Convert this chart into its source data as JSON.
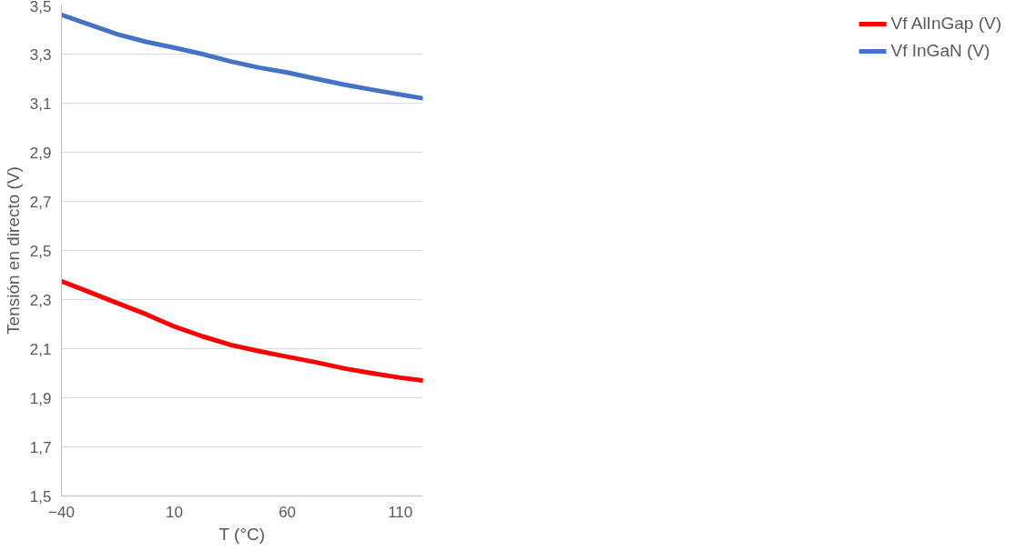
{
  "chart_data": {
    "type": "line",
    "xlabel": "T (°C)",
    "ylabel": "Tensión en directo (V)",
    "x": [
      -40,
      -27.5,
      -15,
      -2.5,
      10,
      22.5,
      35,
      47.5,
      60,
      72.5,
      85,
      97.5,
      110,
      120
    ],
    "series": [
      {
        "name": "Vf AlInGap (V)",
        "color": "#ff0000",
        "values": [
          2.375,
          2.33,
          2.285,
          2.24,
          2.19,
          2.15,
          2.115,
          2.09,
          2.067,
          2.045,
          2.02,
          2.0,
          1.982,
          1.97
        ]
      },
      {
        "name": "Vf InGaN (V)",
        "color": "#4472c4",
        "values": [
          3.46,
          3.42,
          3.38,
          3.35,
          3.326,
          3.3,
          3.27,
          3.245,
          3.225,
          3.2,
          3.176,
          3.155,
          3.135,
          3.12
        ]
      }
    ],
    "xlim": [
      -40,
      120
    ],
    "ylim": [
      1.5,
      3.5
    ],
    "xticks": [
      -40,
      10,
      60,
      110
    ],
    "yticks": [
      {
        "value": 1.5,
        "label": "1,5"
      },
      {
        "value": 1.7,
        "label": "1,7"
      },
      {
        "value": 1.9,
        "label": "1,9"
      },
      {
        "value": 2.1,
        "label": "2,1"
      },
      {
        "value": 2.3,
        "label": "2,3"
      },
      {
        "value": 2.5,
        "label": "2,5"
      },
      {
        "value": 2.7,
        "label": "2,7"
      },
      {
        "value": 2.9,
        "label": "2,9"
      },
      {
        "value": 3.1,
        "label": "3,1"
      },
      {
        "value": 3.3,
        "label": "3,3"
      },
      {
        "value": 3.5,
        "label": "3,5"
      }
    ],
    "grid": "y",
    "legend": "right",
    "marker": "none",
    "line_style": "solid"
  }
}
